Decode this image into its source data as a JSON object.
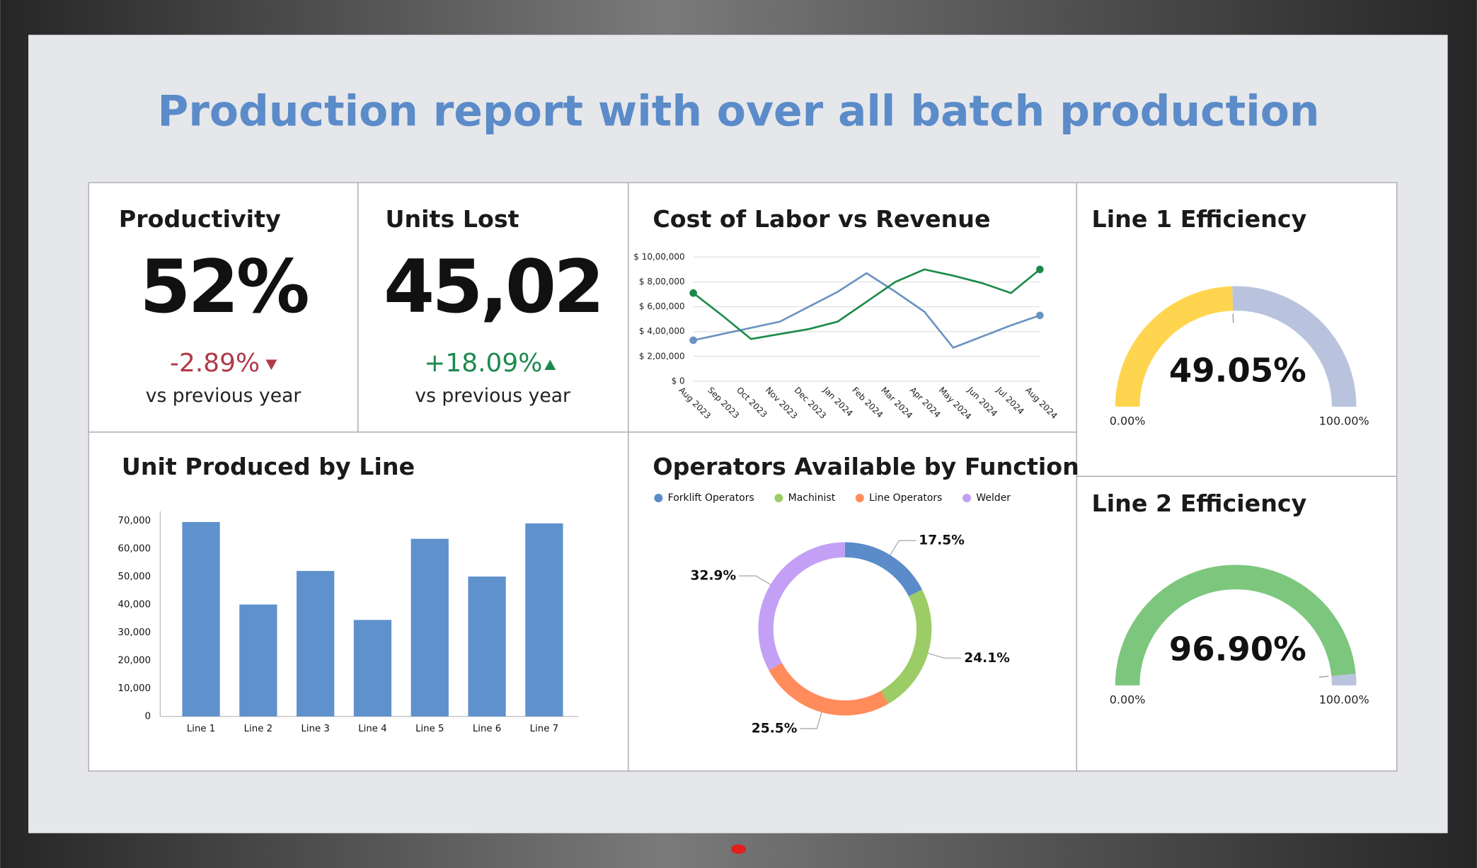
{
  "title": "Production report with over all batch production",
  "kpis": [
    {
      "title": "Productivity",
      "value": "52%",
      "change": "-2.89%",
      "note": "vs previous year"
    },
    {
      "title": "Units Lost",
      "value": "45,02",
      "change": "+18.09%",
      "note": "vs previous year"
    }
  ],
  "chart_data": [
    {
      "type": "line",
      "title": "Cost of Labor vs Revenue",
      "categories": [
        "Aug 2023",
        "Sep 2023",
        "Oct 2023",
        "Nov 2023",
        "Dec 2023",
        "Jan 2024",
        "Feb 2024",
        "Mar 2024",
        "Apr 2024",
        "May 2024",
        "Jun 2024",
        "Jul 2024",
        "Aug 2024"
      ],
      "series": [
        {
          "color": "#6a93c2",
          "values": [
            330000,
            380000,
            430000,
            480000,
            600000,
            720000,
            870000,
            720000,
            560000,
            270000,
            360000,
            450000,
            530000
          ]
        },
        {
          "color": "#1a8a4a",
          "values": [
            710000,
            530000,
            340000,
            380000,
            420000,
            480000,
            640000,
            800000,
            900000,
            850000,
            790000,
            710000,
            900000
          ]
        }
      ],
      "ylim": [
        0,
        1000000
      ],
      "yticks": [
        {
          "value": 0,
          "label": "$ 0"
        },
        {
          "value": 200000,
          "label": "$ 2,00,000"
        },
        {
          "value": 400000,
          "label": "$ 4,00,000"
        },
        {
          "value": 600000,
          "label": "$ 6,00,000"
        },
        {
          "value": 800000,
          "label": "$ 8,00,000"
        },
        {
          "value": 1000000,
          "label": "$ 10,00,000"
        }
      ],
      "grid": true
    },
    {
      "type": "gauge",
      "title": "Line 1 Efficiency",
      "value": 49.05,
      "value_label": "49.05%",
      "color": "#ffd54f",
      "track_color": "#b9c3de",
      "ylim": [
        0,
        100
      ],
      "yticks": [
        {
          "value": 0,
          "label": "0.00%"
        },
        {
          "value": 100,
          "label": "100.00%"
        }
      ]
    },
    {
      "type": "gauge",
      "title": "Line 2 Efficiency",
      "value": 96.9,
      "value_label": "96.90%",
      "color": "#7dc67e",
      "track_color": "#b9c3de",
      "ylim": [
        0,
        100
      ],
      "yticks": [
        {
          "value": 0,
          "label": "0.00%"
        },
        {
          "value": 100,
          "label": "100.00%"
        }
      ]
    },
    {
      "type": "bar",
      "title": "Unit Produced by Line",
      "categories": [
        "Line 1",
        "Line 2",
        "Line 3",
        "Line 4",
        "Line 5",
        "Line 6",
        "Line 7"
      ],
      "values": [
        69500,
        40000,
        52000,
        34500,
        63500,
        50000,
        69000
      ],
      "color": "#5f91cc",
      "ylim": [
        0,
        70000
      ],
      "yticks": [
        0,
        {
          "value": 10000,
          "label": "10,000"
        },
        {
          "value": 20000,
          "label": "20,000"
        },
        {
          "value": 30000,
          "label": "30,000"
        },
        {
          "value": 40000,
          "label": "40,000"
        },
        {
          "value": 50000,
          "label": "50,000"
        },
        {
          "value": 60000,
          "label": "60,000"
        },
        {
          "value": 70000,
          "label": "70,000"
        }
      ]
    },
    {
      "type": "donut",
      "title": "Operators Available by Function",
      "categories": [
        "Forklift Operators",
        "Machinist",
        "Line Operators",
        "Welder"
      ],
      "values": [
        17.5,
        24.1,
        25.5,
        32.9
      ],
      "value_labels": [
        "17.5%",
        "24.1%",
        "25.5%",
        "32.9%"
      ],
      "colors": [
        "#5b8bc9",
        "#9ccc65",
        "#ff8c5a",
        "#c3a0f5"
      ],
      "legend": "top"
    }
  ]
}
